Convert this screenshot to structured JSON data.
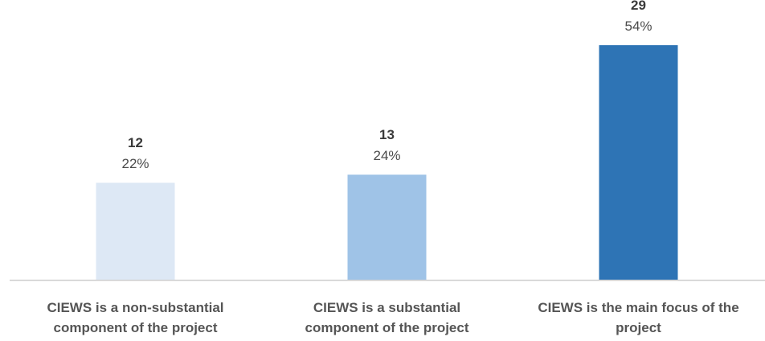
{
  "chart_data": {
    "type": "bar",
    "categories": [
      "CIEWS is a non-substantial component of the project",
      "CIEWS is a substantial component of the project",
      "CIEWS is the main focus of the project"
    ],
    "category_lines": [
      [
        "CIEWS is a non-substantial",
        "component of the project"
      ],
      [
        "CIEWS is a substantial",
        "component of the project"
      ],
      [
        "CIEWS is the main focus of the",
        "project"
      ]
    ],
    "values": [
      12,
      13,
      29
    ],
    "percent_labels": [
      "22%",
      "24%",
      "54%"
    ],
    "ylim": [
      0,
      31
    ],
    "grid": false,
    "legend": "none",
    "colors": [
      "#dde8f5",
      "#9fc3e7",
      "#2e74b5"
    ],
    "axis_color": "#d0d0d0"
  }
}
